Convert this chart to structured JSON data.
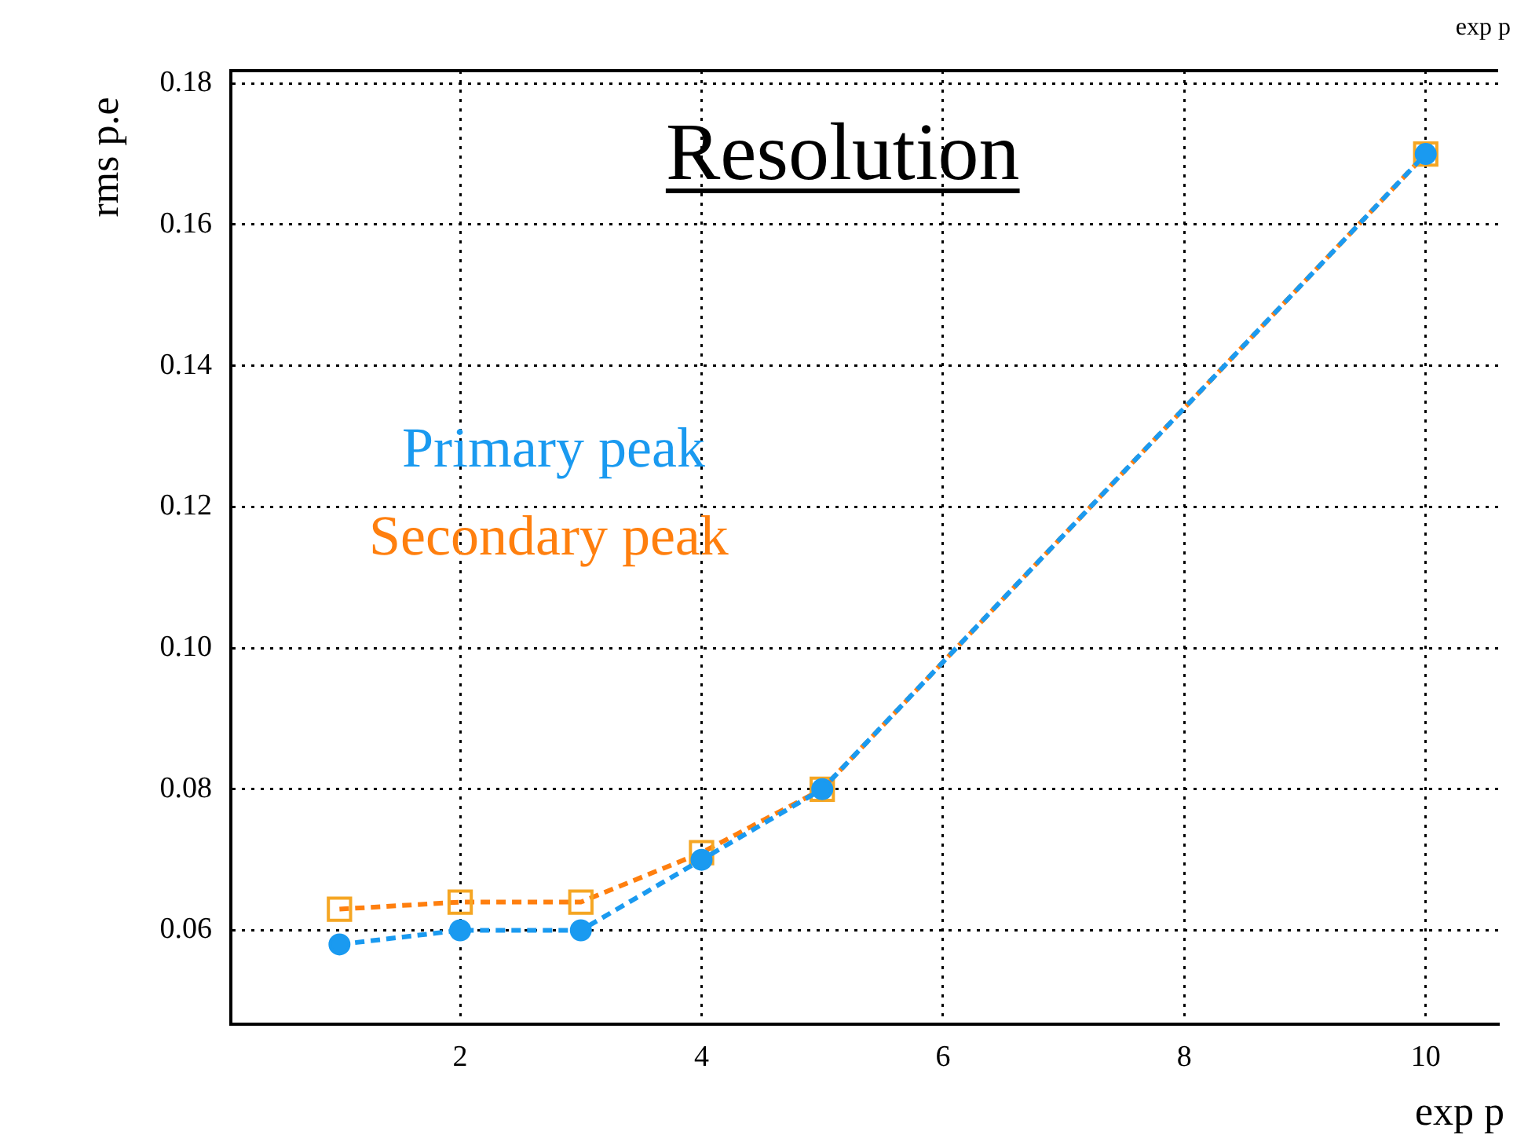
{
  "chart_data": {
    "type": "line",
    "title": "Resolution",
    "xlabel": "exp p",
    "ylabel": "rms p.e",
    "annotations": [
      "exp p"
    ],
    "x": [
      1,
      2,
      3,
      4,
      5,
      10
    ],
    "series": [
      {
        "name": "Primary peak",
        "color": "#1a9af0",
        "values": [
          0.058,
          0.06,
          0.06,
          0.07,
          0.08,
          0.17
        ],
        "marker": "circle"
      },
      {
        "name": "Secondary peak",
        "color": "#ff7f0e",
        "values": [
          0.063,
          0.064,
          0.064,
          0.071,
          0.08,
          0.17
        ],
        "marker": "square"
      }
    ],
    "xlim": [
      0.1,
      10.6
    ],
    "xticks": [
      2,
      4,
      6,
      8,
      10
    ],
    "ylim": [
      0.0467,
      0.1818
    ],
    "yticks": [
      0.06,
      0.08,
      {
        "value": 0.1,
        "label": "0.10"
      },
      0.12,
      0.14,
      0.16,
      0.18
    ],
    "grid": true,
    "line_style": "dashed"
  }
}
